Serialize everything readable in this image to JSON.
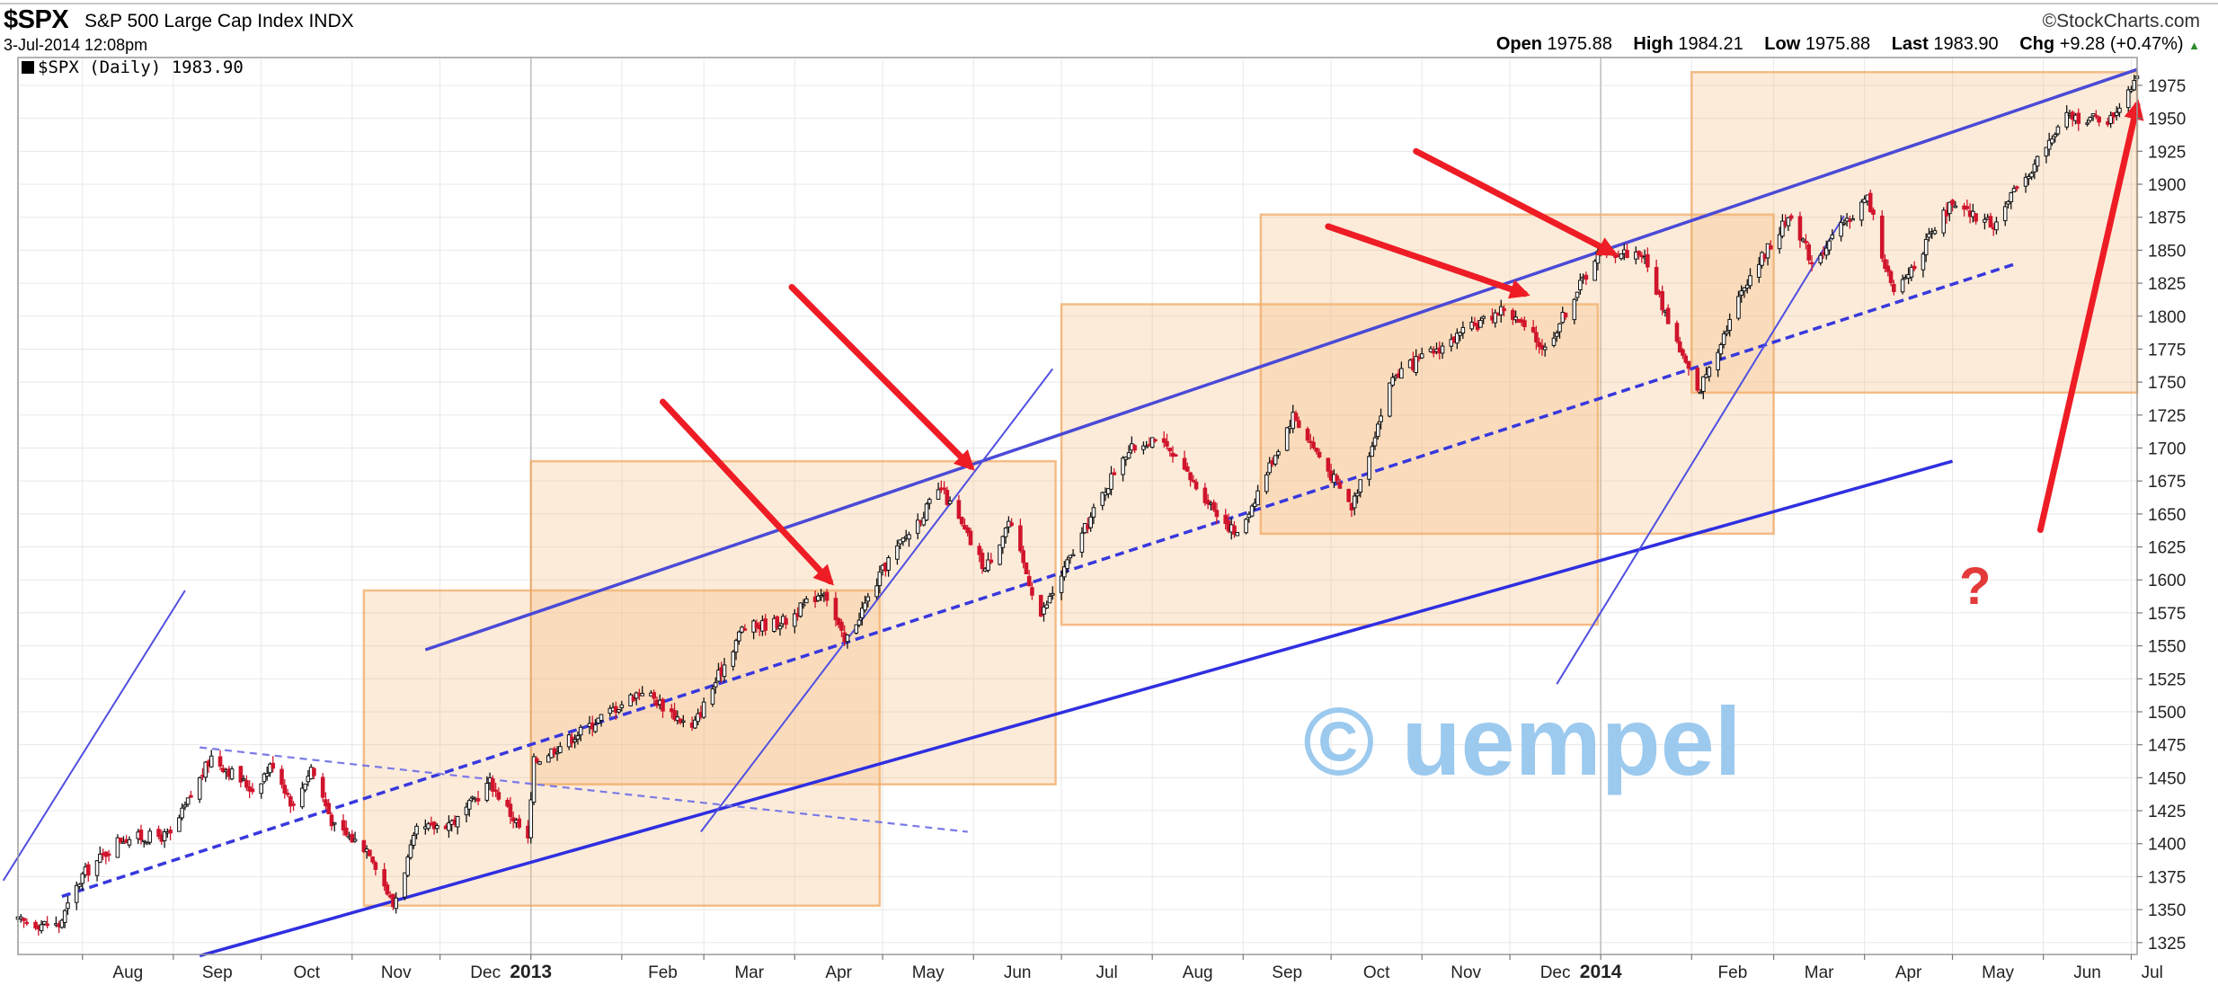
{
  "header": {
    "symbol": "$SPX",
    "name": "S&P 500 Large Cap Index",
    "exchange": "INDX",
    "datetime": "3-Jul-2014 12:08pm",
    "brand": "©StockCharts.com",
    "legend": "$SPX (Daily) 1983.90",
    "ohlc": {
      "open_label": "Open",
      "open": "1975.88",
      "high_label": "High",
      "high": "1984.21",
      "low_label": "Low",
      "low": "1975.88",
      "last_label": "Last",
      "last": "1983.90",
      "chg_label": "Chg",
      "chg": "+9.28 (+0.47%)"
    }
  },
  "watermark": "© uempel",
  "annotation_question": "?",
  "chart_data": {
    "type": "candlestick",
    "title": "$SPX (Daily) 1983.90",
    "x_range": [
      "2012-07-10",
      "2014-07-03"
    ],
    "ylim": [
      1316,
      1992
    ],
    "y_ticks": [
      1325,
      1350,
      1375,
      1400,
      1425,
      1450,
      1475,
      1500,
      1525,
      1550,
      1575,
      1600,
      1625,
      1650,
      1675,
      1700,
      1725,
      1750,
      1775,
      1800,
      1825,
      1850,
      1875,
      1900,
      1925,
      1950,
      1975
    ],
    "x_ticks": [
      {
        "label": "Aug",
        "date": "2012-08-01"
      },
      {
        "label": "Sep",
        "date": "2012-09-01"
      },
      {
        "label": "Oct",
        "date": "2012-10-01"
      },
      {
        "label": "Nov",
        "date": "2012-11-01"
      },
      {
        "label": "Dec",
        "date": "2012-12-01"
      },
      {
        "label": "2013",
        "date": "2013-01-01",
        "year": true
      },
      {
        "label": "Feb",
        "date": "2013-02-01"
      },
      {
        "label": "Mar",
        "date": "2013-03-01"
      },
      {
        "label": "Apr",
        "date": "2013-04-01"
      },
      {
        "label": "May",
        "date": "2013-05-01"
      },
      {
        "label": "Jun",
        "date": "2013-06-01"
      },
      {
        "label": "Jul",
        "date": "2013-07-01"
      },
      {
        "label": "Aug",
        "date": "2013-08-01"
      },
      {
        "label": "Sep",
        "date": "2013-09-01"
      },
      {
        "label": "Oct",
        "date": "2013-10-01"
      },
      {
        "label": "Nov",
        "date": "2013-11-01"
      },
      {
        "label": "Dec",
        "date": "2013-12-01"
      },
      {
        "label": "2014",
        "date": "2014-01-01",
        "year": true
      },
      {
        "label": "Feb",
        "date": "2014-02-01"
      },
      {
        "label": "Mar",
        "date": "2014-03-01"
      },
      {
        "label": "Apr",
        "date": "2014-04-01"
      },
      {
        "label": "May",
        "date": "2014-05-01"
      },
      {
        "label": "Jun",
        "date": "2014-06-01"
      },
      {
        "label": "Jul",
        "date": "2014-07-01"
      }
    ],
    "price_path": [
      [
        "2012-07-10",
        1341
      ],
      [
        "2012-07-24",
        1338
      ],
      [
        "2012-08-01",
        1376
      ],
      [
        "2012-08-14",
        1404
      ],
      [
        "2012-08-31",
        1406
      ],
      [
        "2012-09-14",
        1466
      ],
      [
        "2012-09-28",
        1441
      ],
      [
        "2012-10-05",
        1461
      ],
      [
        "2012-10-12",
        1428
      ],
      [
        "2012-10-18",
        1458
      ],
      [
        "2012-10-26",
        1412
      ],
      [
        "2012-11-07",
        1395
      ],
      [
        "2012-11-15",
        1353
      ],
      [
        "2012-11-23",
        1409
      ],
      [
        "2012-12-07",
        1418
      ],
      [
        "2012-12-18",
        1447
      ],
      [
        "2012-12-31",
        1402
      ],
      [
        "2013-01-02",
        1462
      ],
      [
        "2013-01-18",
        1485
      ],
      [
        "2013-02-08",
        1517
      ],
      [
        "2013-02-25",
        1487
      ],
      [
        "2013-03-14",
        1563
      ],
      [
        "2013-03-29",
        1569
      ],
      [
        "2013-04-11",
        1593
      ],
      [
        "2013-04-18",
        1552
      ],
      [
        "2013-05-03",
        1615
      ],
      [
        "2013-05-21",
        1669
      ],
      [
        "2013-06-05",
        1608
      ],
      [
        "2013-06-13",
        1644
      ],
      [
        "2013-06-24",
        1573
      ],
      [
        "2013-07-22",
        1695
      ],
      [
        "2013-08-02",
        1709
      ],
      [
        "2013-08-30",
        1633
      ],
      [
        "2013-09-18",
        1725
      ],
      [
        "2013-10-08",
        1655
      ],
      [
        "2013-10-22",
        1754
      ],
      [
        "2013-11-18",
        1791
      ],
      [
        "2013-11-29",
        1806
      ],
      [
        "2013-12-13",
        1775
      ],
      [
        "2013-12-31",
        1848
      ],
      [
        "2014-01-15",
        1848
      ],
      [
        "2014-02-03",
        1741
      ],
      [
        "2014-02-20",
        1828
      ],
      [
        "2014-03-07",
        1878
      ],
      [
        "2014-03-14",
        1841
      ],
      [
        "2014-04-02",
        1890
      ],
      [
        "2014-04-11",
        1815
      ],
      [
        "2014-04-30",
        1883
      ],
      [
        "2014-05-15",
        1870
      ],
      [
        "2014-06-09",
        1951
      ],
      [
        "2014-06-24",
        1949
      ],
      [
        "2014-07-03",
        1984
      ]
    ],
    "overlays": {
      "channel_upper": [
        [
          "2012-11-26",
          1547
        ],
        [
          "2014-07-03",
          1987
        ]
      ],
      "channel_lower": [
        [
          "2012-09-10",
          1315
        ],
        [
          "2014-05-01",
          1690
        ]
      ],
      "midline": [
        [
          "2012-07-25",
          1360
        ],
        [
          "2014-05-23",
          1840
        ]
      ],
      "descending_trend": [
        [
          "2012-09-10",
          1473
        ],
        [
          "2013-05-30",
          1409
        ]
      ],
      "rays": [
        [
          [
            "2012-07-05",
            1372
          ],
          [
            "2012-09-05",
            1592
          ]
        ],
        [
          [
            "2013-02-28",
            1409
          ],
          [
            "2013-06-28",
            1760
          ]
        ],
        [
          [
            "2013-12-17",
            1521
          ],
          [
            "2014-03-25",
            1876
          ]
        ]
      ],
      "boxes": [
        [
          [
            "2012-11-05",
            1353
          ],
          [
            "2013-04-30",
            1592
          ]
        ],
        [
          [
            "2013-01-01",
            1445
          ],
          [
            "2013-06-29",
            1690
          ]
        ],
        [
          [
            "2013-07-01",
            1566
          ],
          [
            "2013-12-31",
            1809
          ]
        ],
        [
          [
            "2013-09-07",
            1635
          ],
          [
            "2014-03-01",
            1877
          ]
        ],
        [
          [
            "2014-02-01",
            1742
          ],
          [
            "2014-07-03",
            1985
          ]
        ]
      ],
      "arrows": [
        [
          [
            "2013-02-15",
            1735
          ],
          [
            "2013-04-13",
            1599
          ]
        ],
        [
          [
            "2013-03-31",
            1822
          ],
          [
            "2013-05-31",
            1686
          ]
        ],
        [
          [
            "2013-09-30",
            1868
          ],
          [
            "2013-12-06",
            1817
          ]
        ],
        [
          [
            "2013-10-30",
            1925
          ],
          [
            "2014-01-05",
            1848
          ]
        ]
      ],
      "big_arrow": [
        [
          "2014-05-31",
          1638
        ],
        [
          "2014-07-03",
          1960
        ]
      ]
    }
  }
}
